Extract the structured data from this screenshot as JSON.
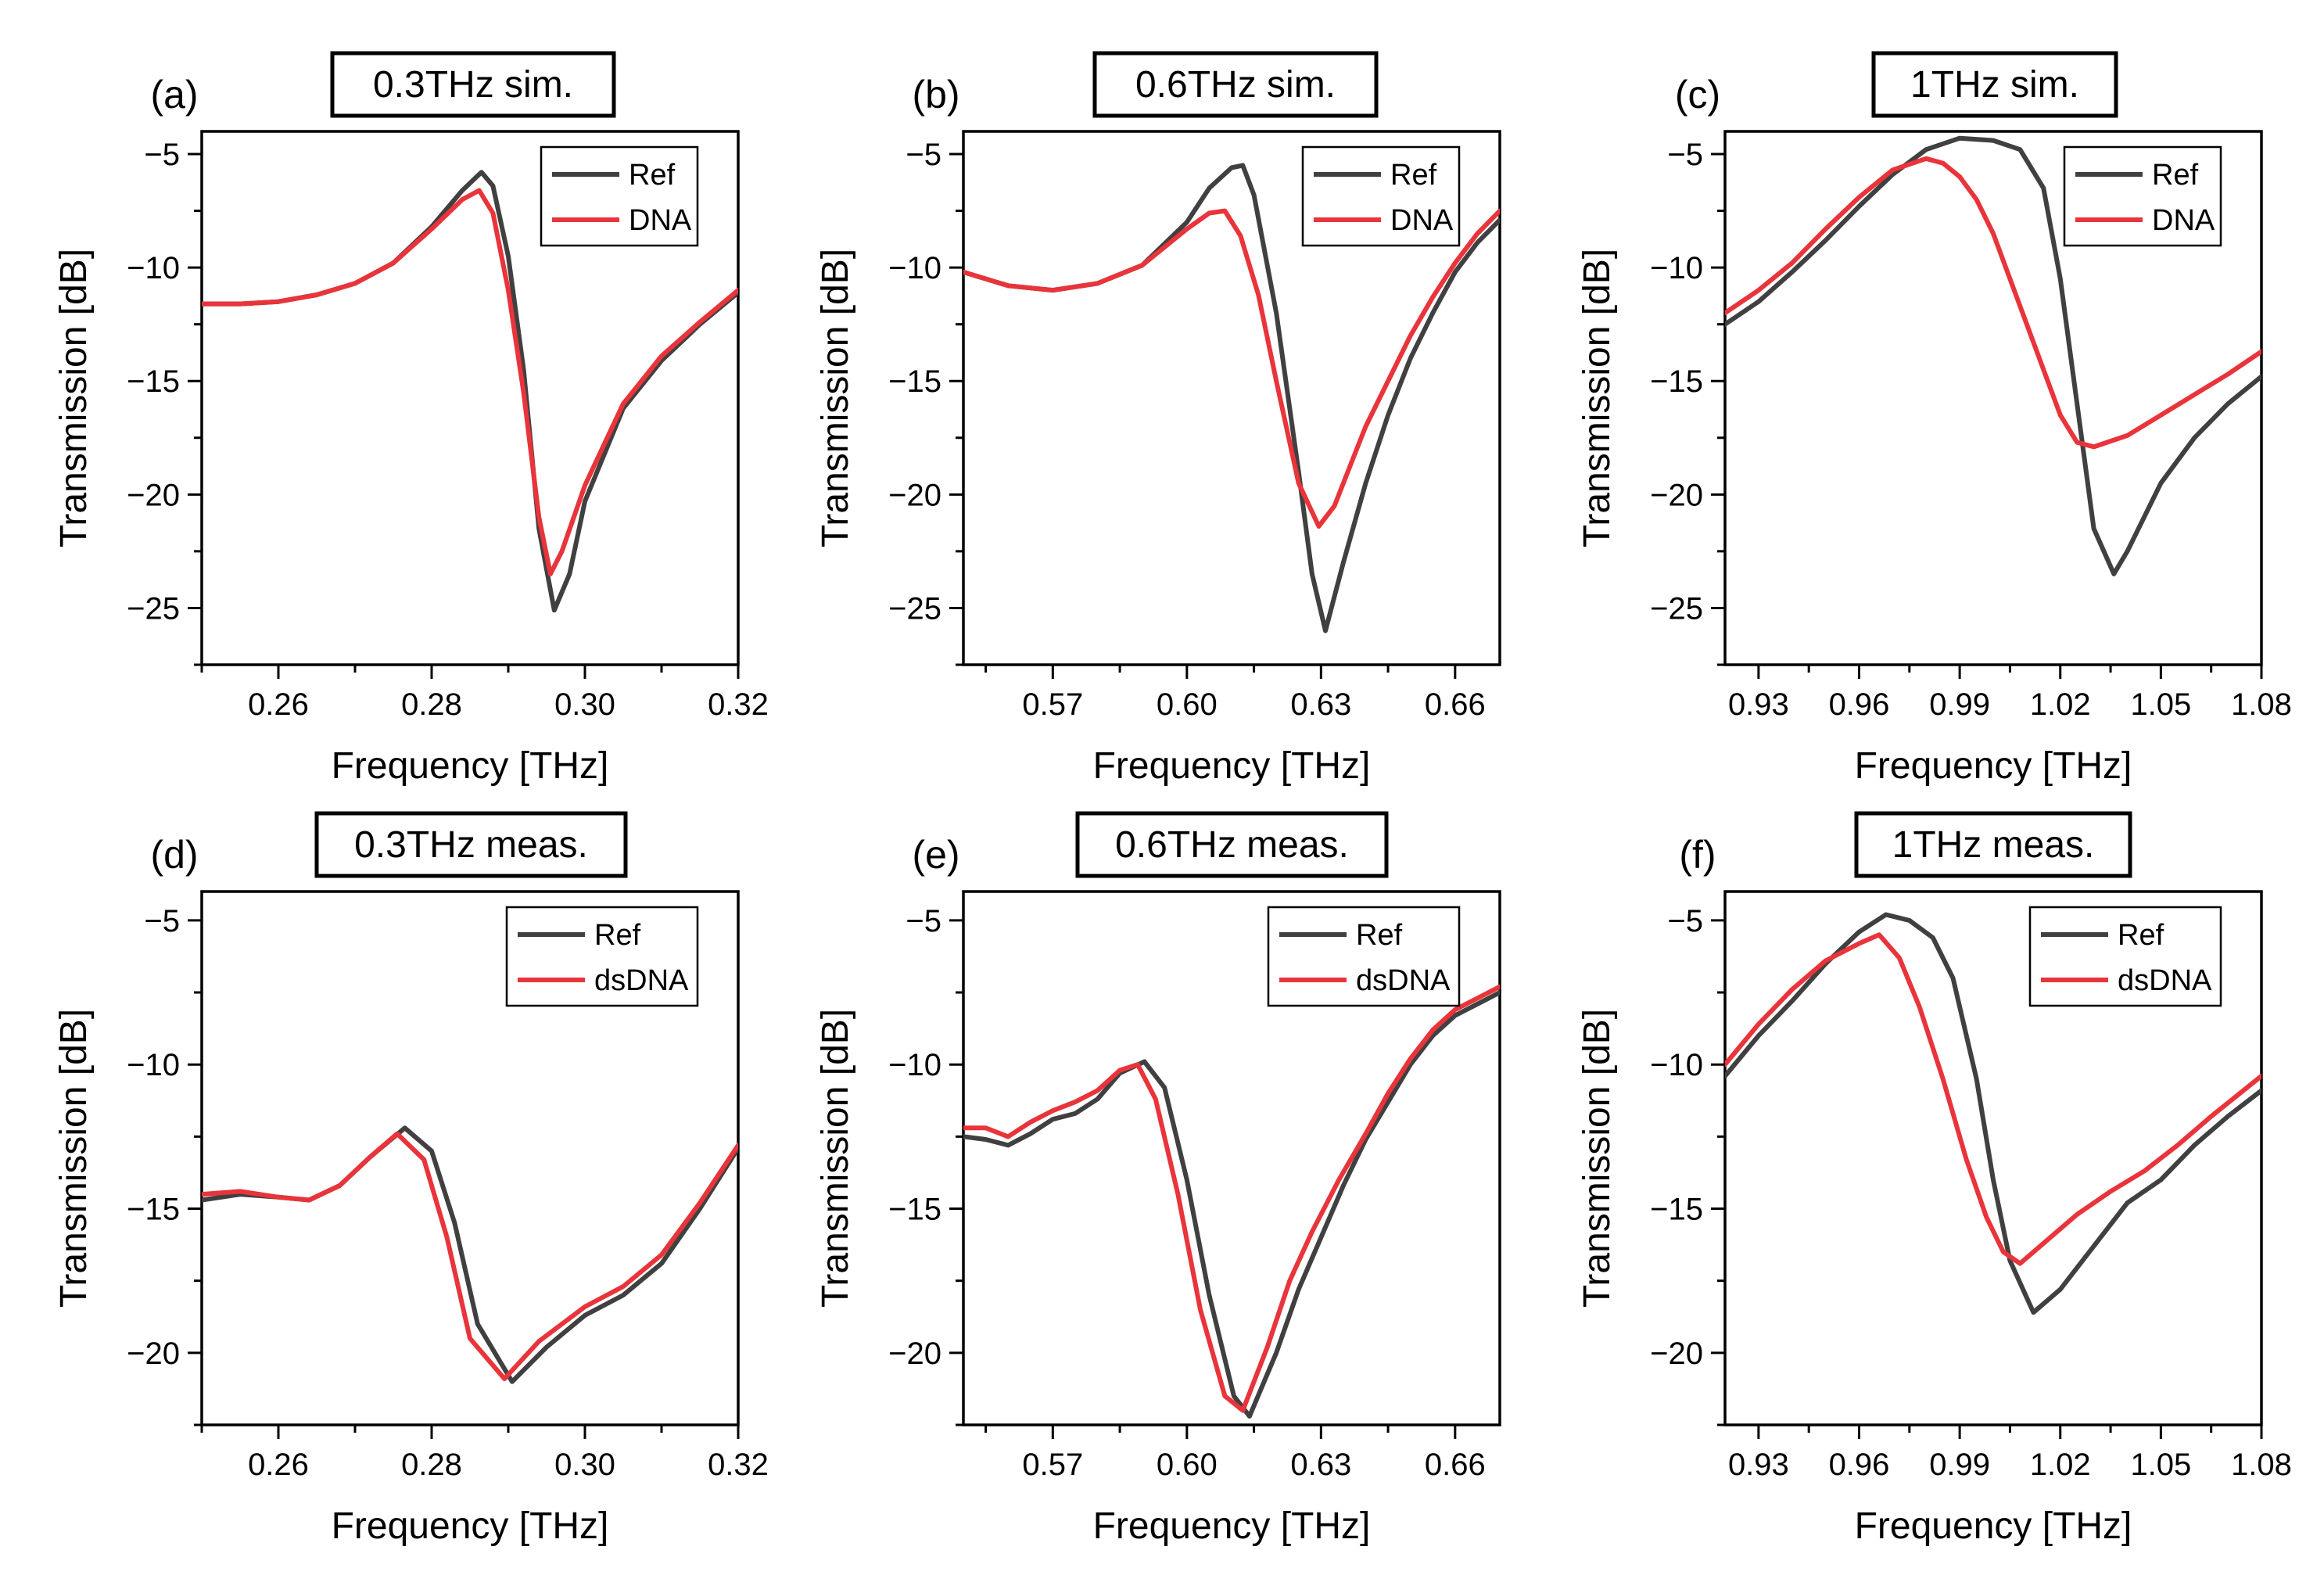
{
  "colors": {
    "ref": "#404040",
    "dna": "#e8343a"
  },
  "chart_data": [
    {
      "type": "line",
      "panel": "(a)",
      "title": "0.3THz sim.",
      "xlabel": "Frequency [THz]",
      "ylabel": "Transmission [dB]",
      "xlim": [
        0.25,
        0.32
      ],
      "ylim": [
        -27.5,
        -4
      ],
      "xticks": [
        0.26,
        0.28,
        0.3,
        0.32
      ],
      "xtick_labels": [
        "0.26",
        "0.28",
        "0.30",
        "0.32"
      ],
      "yticks": [
        -25,
        -20,
        -15,
        -10,
        -5
      ],
      "ytick_labels": [
        "−25",
        "−20",
        "−15",
        "−10",
        "−5"
      ],
      "legend_position": "top-right",
      "series": [
        {
          "name": "Ref",
          "color_key": "ref",
          "x": [
            0.25,
            0.255,
            0.26,
            0.265,
            0.27,
            0.275,
            0.28,
            0.284,
            0.2865,
            0.288,
            0.29,
            0.292,
            0.294,
            0.296,
            0.298,
            0.3,
            0.305,
            0.31,
            0.315,
            0.32
          ],
          "y": [
            -11.6,
            -11.6,
            -11.5,
            -11.2,
            -10.7,
            -9.8,
            -8.2,
            -6.6,
            -5.8,
            -6.4,
            -9.5,
            -14.5,
            -21.5,
            -25.1,
            -23.5,
            -20.3,
            -16.2,
            -14.1,
            -12.5,
            -11.1
          ]
        },
        {
          "name": "DNA",
          "color_key": "dna",
          "x": [
            0.25,
            0.255,
            0.26,
            0.265,
            0.27,
            0.275,
            0.28,
            0.284,
            0.2862,
            0.288,
            0.29,
            0.292,
            0.294,
            0.2955,
            0.297,
            0.3,
            0.305,
            0.31,
            0.315,
            0.32
          ],
          "y": [
            -11.6,
            -11.6,
            -11.5,
            -11.2,
            -10.7,
            -9.8,
            -8.3,
            -7.0,
            -6.6,
            -7.6,
            -11.0,
            -15.5,
            -21.0,
            -23.5,
            -22.5,
            -19.6,
            -16.0,
            -13.9,
            -12.4,
            -11.0
          ]
        }
      ]
    },
    {
      "type": "line",
      "panel": "(b)",
      "title": "0.6THz sim.",
      "xlabel": "Frequency [THz]",
      "ylabel": "Transmission [dB]",
      "xlim": [
        0.55,
        0.67
      ],
      "ylim": [
        -27.5,
        -4
      ],
      "xticks": [
        0.57,
        0.6,
        0.63,
        0.66
      ],
      "xtick_labels": [
        "0.57",
        "0.60",
        "0.63",
        "0.66"
      ],
      "yticks": [
        -25,
        -20,
        -15,
        -10,
        -5
      ],
      "ytick_labels": [
        "−25",
        "−20",
        "−15",
        "−10",
        "−5"
      ],
      "legend_position": "top-right",
      "series": [
        {
          "name": "Ref",
          "color_key": "ref",
          "x": [
            0.55,
            0.56,
            0.57,
            0.58,
            0.59,
            0.6,
            0.605,
            0.61,
            0.6125,
            0.615,
            0.62,
            0.625,
            0.628,
            0.631,
            0.635,
            0.64,
            0.645,
            0.65,
            0.655,
            0.66,
            0.665,
            0.67
          ],
          "y": [
            -10.2,
            -10.8,
            -11.0,
            -10.7,
            -9.9,
            -8.0,
            -6.5,
            -5.6,
            -5.5,
            -6.8,
            -12.0,
            -19.0,
            -23.5,
            -26.0,
            -23.0,
            -19.5,
            -16.5,
            -14.0,
            -12.0,
            -10.2,
            -8.9,
            -7.9
          ]
        },
        {
          "name": "DNA",
          "color_key": "dna",
          "x": [
            0.55,
            0.56,
            0.57,
            0.58,
            0.59,
            0.6,
            0.605,
            0.6085,
            0.612,
            0.616,
            0.62,
            0.625,
            0.6295,
            0.633,
            0.637,
            0.64,
            0.645,
            0.65,
            0.655,
            0.66,
            0.665,
            0.67
          ],
          "y": [
            -10.2,
            -10.8,
            -11.0,
            -10.7,
            -9.9,
            -8.3,
            -7.6,
            -7.5,
            -8.6,
            -11.2,
            -15.0,
            -19.5,
            -21.4,
            -20.5,
            -18.5,
            -17.0,
            -15.0,
            -13.0,
            -11.3,
            -9.8,
            -8.5,
            -7.5
          ]
        }
      ]
    },
    {
      "type": "line",
      "panel": "(c)",
      "title": "1THz sim.",
      "xlabel": "Frequency [THz]",
      "ylabel": "Transmission [dB]",
      "xlim": [
        0.92,
        1.08
      ],
      "ylim": [
        -27.5,
        -4
      ],
      "xticks": [
        0.93,
        0.96,
        0.99,
        1.02,
        1.05,
        1.08
      ],
      "xtick_labels": [
        "0.93",
        "0.96",
        "0.99",
        "1.02",
        "1.05",
        "1.08"
      ],
      "yticks": [
        -25,
        -20,
        -15,
        -10,
        -5
      ],
      "ytick_labels": [
        "−25",
        "−20",
        "−15",
        "−10",
        "−5"
      ],
      "legend_position": "top-right",
      "series": [
        {
          "name": "Ref",
          "color_key": "ref",
          "x": [
            0.92,
            0.93,
            0.94,
            0.95,
            0.96,
            0.97,
            0.98,
            0.99,
            1.0,
            1.008,
            1.015,
            1.02,
            1.025,
            1.03,
            1.036,
            1.04,
            1.05,
            1.06,
            1.07,
            1.08
          ],
          "y": [
            -12.5,
            -11.5,
            -10.2,
            -8.8,
            -7.3,
            -5.9,
            -4.8,
            -4.3,
            -4.4,
            -4.8,
            -6.5,
            -10.5,
            -16.0,
            -21.5,
            -23.5,
            -22.5,
            -19.5,
            -17.5,
            -16.0,
            -14.8
          ]
        },
        {
          "name": "DNA",
          "color_key": "dna",
          "x": [
            0.92,
            0.93,
            0.94,
            0.95,
            0.96,
            0.97,
            0.98,
            0.985,
            0.99,
            0.995,
            1.0,
            1.01,
            1.02,
            1.025,
            1.03,
            1.04,
            1.05,
            1.06,
            1.07,
            1.08
          ],
          "y": [
            -12.0,
            -11.0,
            -9.8,
            -8.3,
            -6.9,
            -5.7,
            -5.2,
            -5.4,
            -6.0,
            -7.0,
            -8.5,
            -12.5,
            -16.5,
            -17.7,
            -17.9,
            -17.4,
            -16.5,
            -15.6,
            -14.7,
            -13.7
          ]
        }
      ]
    },
    {
      "type": "line",
      "panel": "(d)",
      "title": "0.3THz meas.",
      "xlabel": "Frequency [THz]",
      "ylabel": "Transmission [dB]",
      "xlim": [
        0.25,
        0.32
      ],
      "ylim": [
        -22.5,
        -4
      ],
      "xticks": [
        0.26,
        0.28,
        0.3,
        0.32
      ],
      "xtick_labels": [
        "0.26",
        "0.28",
        "0.30",
        "0.32"
      ],
      "yticks": [
        -20,
        -15,
        -10,
        -5
      ],
      "ytick_labels": [
        "−20",
        "−15",
        "−10",
        "−5"
      ],
      "legend_position": "top-right",
      "series": [
        {
          "name": "Ref",
          "color_key": "ref",
          "x": [
            0.25,
            0.255,
            0.26,
            0.264,
            0.268,
            0.272,
            0.2765,
            0.28,
            0.283,
            0.286,
            0.2905,
            0.295,
            0.3,
            0.305,
            0.31,
            0.315,
            0.32
          ],
          "y": [
            -14.7,
            -14.5,
            -14.6,
            -14.7,
            -14.2,
            -13.2,
            -12.2,
            -13.0,
            -15.5,
            -19.0,
            -21.0,
            -19.8,
            -18.7,
            -18.0,
            -16.9,
            -15.0,
            -12.9
          ]
        },
        {
          "name": "dsDNA",
          "color_key": "dna",
          "x": [
            0.25,
            0.255,
            0.26,
            0.264,
            0.268,
            0.272,
            0.2755,
            0.279,
            0.282,
            0.285,
            0.2895,
            0.294,
            0.3,
            0.305,
            0.31,
            0.315,
            0.32
          ],
          "y": [
            -14.5,
            -14.4,
            -14.6,
            -14.7,
            -14.2,
            -13.2,
            -12.4,
            -13.3,
            -16.0,
            -19.5,
            -20.9,
            -19.6,
            -18.4,
            -17.7,
            -16.6,
            -14.8,
            -12.8
          ]
        }
      ]
    },
    {
      "type": "line",
      "panel": "(e)",
      "title": "0.6THz meas.",
      "xlabel": "Frequency [THz]",
      "ylabel": "Transmission [dB]",
      "xlim": [
        0.55,
        0.67
      ],
      "ylim": [
        -22.5,
        -4
      ],
      "xticks": [
        0.57,
        0.6,
        0.63,
        0.66
      ],
      "xtick_labels": [
        "0.57",
        "0.60",
        "0.63",
        "0.66"
      ],
      "yticks": [
        -20,
        -15,
        -10,
        -5
      ],
      "ytick_labels": [
        "−20",
        "−15",
        "−10",
        "−5"
      ],
      "legend_position": "top-right",
      "series": [
        {
          "name": "Ref",
          "color_key": "ref",
          "x": [
            0.55,
            0.555,
            0.56,
            0.565,
            0.57,
            0.575,
            0.58,
            0.585,
            0.5905,
            0.595,
            0.6,
            0.605,
            0.6105,
            0.614,
            0.62,
            0.625,
            0.63,
            0.635,
            0.64,
            0.645,
            0.65,
            0.655,
            0.66,
            0.665,
            0.67
          ],
          "y": [
            -12.5,
            -12.6,
            -12.8,
            -12.4,
            -11.9,
            -11.7,
            -11.2,
            -10.3,
            -9.9,
            -10.8,
            -14.0,
            -18.0,
            -21.5,
            -22.2,
            -20.0,
            -17.8,
            -16.0,
            -14.2,
            -12.6,
            -11.3,
            -10.0,
            -9.0,
            -8.3,
            -7.9,
            -7.5
          ]
        },
        {
          "name": "dsDNA",
          "color_key": "dna",
          "x": [
            0.55,
            0.555,
            0.56,
            0.565,
            0.57,
            0.575,
            0.58,
            0.585,
            0.589,
            0.593,
            0.598,
            0.603,
            0.6085,
            0.6125,
            0.618,
            0.623,
            0.628,
            0.634,
            0.64,
            0.645,
            0.65,
            0.655,
            0.66,
            0.665,
            0.67
          ],
          "y": [
            -12.2,
            -12.2,
            -12.5,
            -12.0,
            -11.6,
            -11.3,
            -10.9,
            -10.2,
            -10.0,
            -11.2,
            -14.5,
            -18.5,
            -21.5,
            -22.0,
            -19.8,
            -17.5,
            -15.8,
            -14.0,
            -12.4,
            -11.0,
            -9.8,
            -8.8,
            -8.1,
            -7.7,
            -7.3
          ]
        }
      ]
    },
    {
      "type": "line",
      "panel": "(f)",
      "title": "1THz meas.",
      "xlabel": "Frequency [THz]",
      "ylabel": "Transmission [dB]",
      "xlim": [
        0.92,
        1.08
      ],
      "ylim": [
        -22.5,
        -4
      ],
      "xticks": [
        0.93,
        0.96,
        0.99,
        1.02,
        1.05,
        1.08
      ],
      "xtick_labels": [
        "0.93",
        "0.96",
        "0.99",
        "1.02",
        "1.05",
        "1.08"
      ],
      "yticks": [
        -20,
        -15,
        -10,
        -5
      ],
      "ytick_labels": [
        "−20",
        "−15",
        "−10",
        "−5"
      ],
      "legend_position": "top-right",
      "series": [
        {
          "name": "Ref",
          "color_key": "ref",
          "x": [
            0.92,
            0.93,
            0.94,
            0.95,
            0.96,
            0.968,
            0.975,
            0.982,
            0.988,
            0.995,
            1.0,
            1.005,
            1.012,
            1.02,
            1.03,
            1.04,
            1.05,
            1.06,
            1.07,
            1.08
          ],
          "y": [
            -10.4,
            -9.0,
            -7.8,
            -6.5,
            -5.4,
            -4.8,
            -5.0,
            -5.6,
            -7.0,
            -10.5,
            -14.0,
            -16.8,
            -18.6,
            -17.8,
            -16.3,
            -14.8,
            -14.0,
            -12.8,
            -11.8,
            -10.9
          ]
        },
        {
          "name": "dsDNA",
          "color_key": "dna",
          "x": [
            0.92,
            0.93,
            0.94,
            0.95,
            0.96,
            0.966,
            0.972,
            0.978,
            0.985,
            0.992,
            0.998,
            1.003,
            1.008,
            1.015,
            1.025,
            1.035,
            1.045,
            1.055,
            1.065,
            1.08
          ],
          "y": [
            -10.0,
            -8.6,
            -7.4,
            -6.4,
            -5.8,
            -5.5,
            -6.3,
            -8.0,
            -10.5,
            -13.3,
            -15.3,
            -16.5,
            -16.9,
            -16.2,
            -15.2,
            -14.4,
            -13.7,
            -12.8,
            -11.8,
            -10.4
          ]
        }
      ]
    }
  ]
}
